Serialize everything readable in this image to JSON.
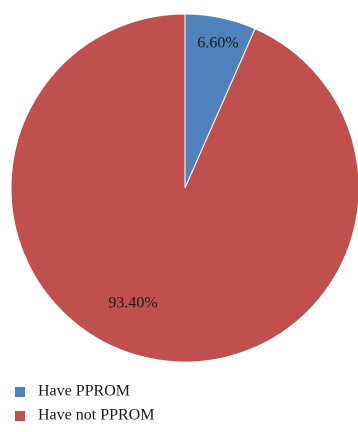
{
  "chart_data": {
    "type": "pie",
    "slices": [
      {
        "label": "Have PPROM",
        "value": 6.6,
        "display": "6.60%",
        "color": "#4f81bd"
      },
      {
        "label": "Have not PPROM",
        "value": 93.4,
        "display": "93.40%",
        "color": "#c0504d"
      }
    ],
    "start_angle": "12 o'clock",
    "direction": "clockwise",
    "legend": {
      "position": "bottom-left",
      "entries": [
        "Have PPROM",
        "Have not PPROM"
      ]
    }
  }
}
